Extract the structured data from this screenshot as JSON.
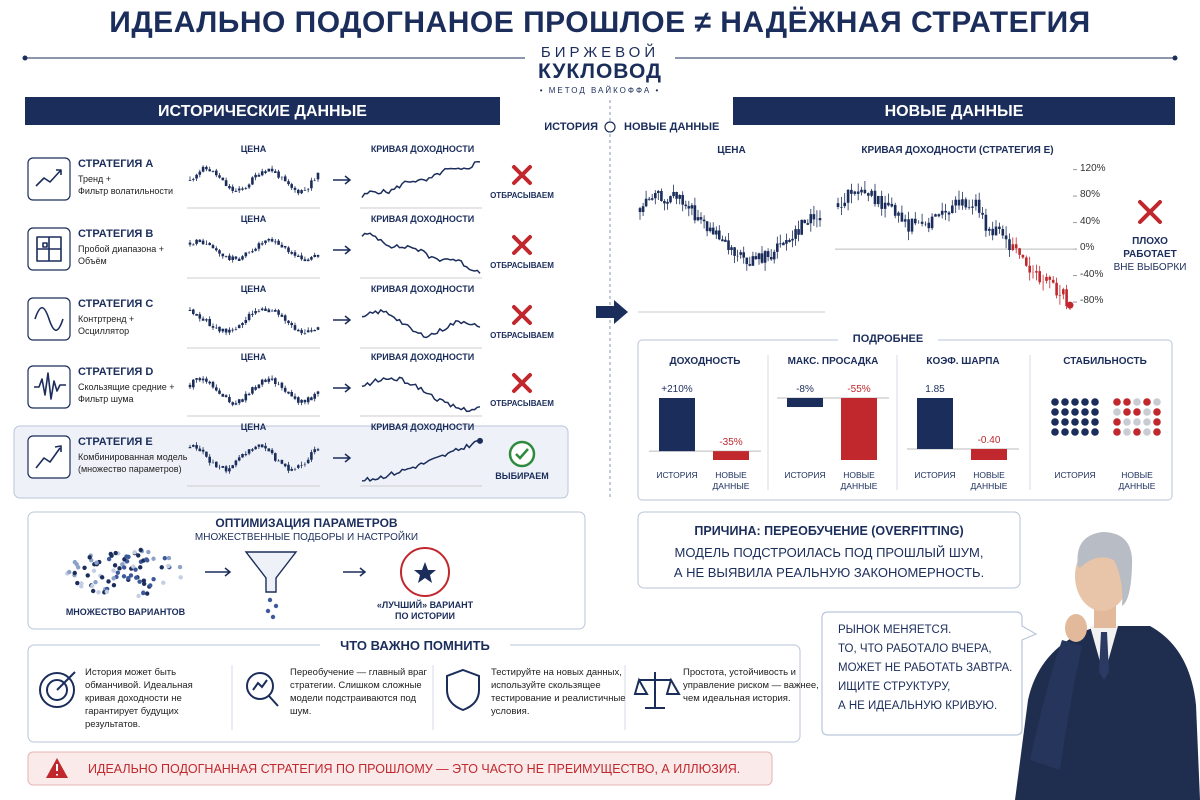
{
  "header": {
    "title": "ИДЕАЛЬНО ПОДОГНАНОЕ ПРОШЛОЕ ≠ НАДЁЖНАЯ СТРАТЕГИЯ",
    "logo": {
      "line1": "БИРЖЕВОЙ",
      "line2": "КУКЛОВОД",
      "tagline": "• МЕТОД ВАЙКОФФА •"
    }
  },
  "historical": {
    "title": "ИСТОРИЧЕСКИЕ ДАННЫЕ",
    "strategies": [
      {
        "name": "СТРАТЕГИЯ A",
        "description": [
          "Тренд +",
          "Фильтр волатильности"
        ],
        "price_label": "ЦЕНА",
        "curve_label": "КРИВАЯ ДОХОДНОСТИ",
        "verdict": "ОТБРАСЫВАЕМ"
      },
      {
        "name": "СТРАТЕГИЯ B",
        "description": [
          "Пробой диапазона +",
          "Объём"
        ],
        "price_label": "ЦЕНА",
        "curve_label": "КРИВАЯ ДОХОДНОСТИ",
        "verdict": "ОТБРАСЫВАЕМ"
      },
      {
        "name": "СТРАТЕГИЯ C",
        "description": [
          "Контртренд +",
          "Осциллятор"
        ],
        "price_label": "ЦЕНА",
        "curve_label": "КРИВАЯ ДОХОДНОСТИ",
        "verdict": "ОТБРАСЫВАЕМ"
      },
      {
        "name": "СТРАТЕГИЯ D",
        "description": [
          "Скользящие средние +",
          "Фильтр шума"
        ],
        "price_label": "ЦЕНА",
        "curve_label": "КРИВАЯ ДОХОДНОСТИ",
        "verdict": "ОТБРАСЫВАЕМ"
      },
      {
        "name": "СТРАТЕГИЯ E",
        "description": [
          "Комбинированная модель",
          "(множество параметров)"
        ],
        "price_label": "ЦЕНА",
        "curve_label": "КРИВАЯ ДОХОДНОСТИ",
        "verdict": "ВЫБИРАЕМ",
        "selected": true
      }
    ]
  },
  "timeline": {
    "left": "ИСТОРИЯ",
    "right": "НОВЫЕ ДАННЫЕ"
  },
  "new_data": {
    "title": "НОВЫЕ ДАННЫЕ",
    "price_label": "ЦЕНА",
    "curve_label": "КРИВАЯ ДОХОДНОСТИ (СТРАТЕГИЯ E)",
    "ylim": [
      -95,
      130
    ],
    "yticks": [
      {
        "value": 120,
        "label": "120%"
      },
      {
        "value": 80,
        "label": "80%"
      },
      {
        "value": 40,
        "label": "40%"
      },
      {
        "value": 0,
        "label": "0%"
      },
      {
        "value": -40,
        "label": "-40%"
      },
      {
        "value": -80,
        "label": "-80%"
      }
    ],
    "verdict_title": "ПЛОХО РАБОТАЕТ",
    "verdict_note": "ВНЕ ВЫБОРКИ"
  },
  "details": {
    "title": "ПОДРОБНЕЕ",
    "metrics": [
      {
        "title": "ДОХОДНОСТЬ",
        "categories": [
          "ИСТОРИЯ",
          "НОВЫЕ ДАННЫЕ"
        ],
        "values": [
          210,
          -35
        ],
        "value_labels": [
          "+210%",
          "-35%"
        ]
      },
      {
        "title": "МАКС. ПРОСАДКА",
        "categories": [
          "ИСТОРИЯ",
          "НОВЫЕ ДАННЫЕ"
        ],
        "values": [
          -8,
          -55
        ],
        "value_labels": [
          "-8%",
          "-55%"
        ]
      },
      {
        "title": "КОЭФ. ШАРПА",
        "categories": [
          "ИСТОРИЯ",
          "НОВЫЕ ДАННЫЕ"
        ],
        "values": [
          1.85,
          -0.4
        ],
        "value_labels": [
          "1.85",
          "-0.40"
        ]
      }
    ],
    "stability": {
      "title": "СТАБИЛЬНОСТЬ",
      "categories": [
        "ИСТОРИЯ",
        "НОВЫЕ ДАННЫЕ"
      ]
    }
  },
  "reason": {
    "title": "ПРИЧИНА: ПЕРЕОБУЧЕНИЕ (OVERFITTING)",
    "text": [
      "МОДЕЛЬ ПОДСТРОИЛАСЬ ПОД ПРОШЛЫЙ ШУМ,",
      "А НЕ ВЫЯВИЛА РЕАЛЬНУЮ ЗАКОНОМЕРНОСТЬ."
    ]
  },
  "optimization": {
    "title": "ОПТИМИЗАЦИЯ ПАРАМЕТРОВ",
    "subtitle": "МНОЖЕСТВЕННЫЕ ПОДБОРЫ И НАСТРОЙКИ",
    "variants_label": "МНОЖЕСТВО ВАРИАНТОВ",
    "best_label": "«ЛУЧШИЙ» ВАРИАНТ ПО ИСТОРИИ"
  },
  "quote": [
    "РЫНОК МЕНЯЕТСЯ.",
    "ТО, ЧТО РАБОТАЛО ВЧЕРА,",
    "МОЖЕТ НЕ РАБОТАТЬ ЗАВТРА.",
    "ИЩИТЕ СТРУКТУРУ,",
    "А НЕ ИДЕАЛЬНУЮ КРИВУЮ."
  ],
  "remember": {
    "title": "ЧТО ВАЖНО ПОМНИТЬ",
    "items": [
      "История может быть обманчивой. Идеальная кривая доходности не гарантирует будущих результатов.",
      "Переобучение — главный враг стратегии. Слишком сложные модели подстраиваются под шум.",
      "Тестируйте на новых данных, используйте скользящее тестирование и реалистичные условия.",
      "Простота, устойчивость и управление риском — важнее, чем идеальная история."
    ]
  },
  "warning": "ИДЕАЛЬНО ПОДОГНАННАЯ СТРАТЕГИЯ ПО ПРОШЛОМУ — ЭТО ЧАСТО НЕ ПРЕИМУЩЕСТВО, А ИЛЛЮЗИЯ."
}
